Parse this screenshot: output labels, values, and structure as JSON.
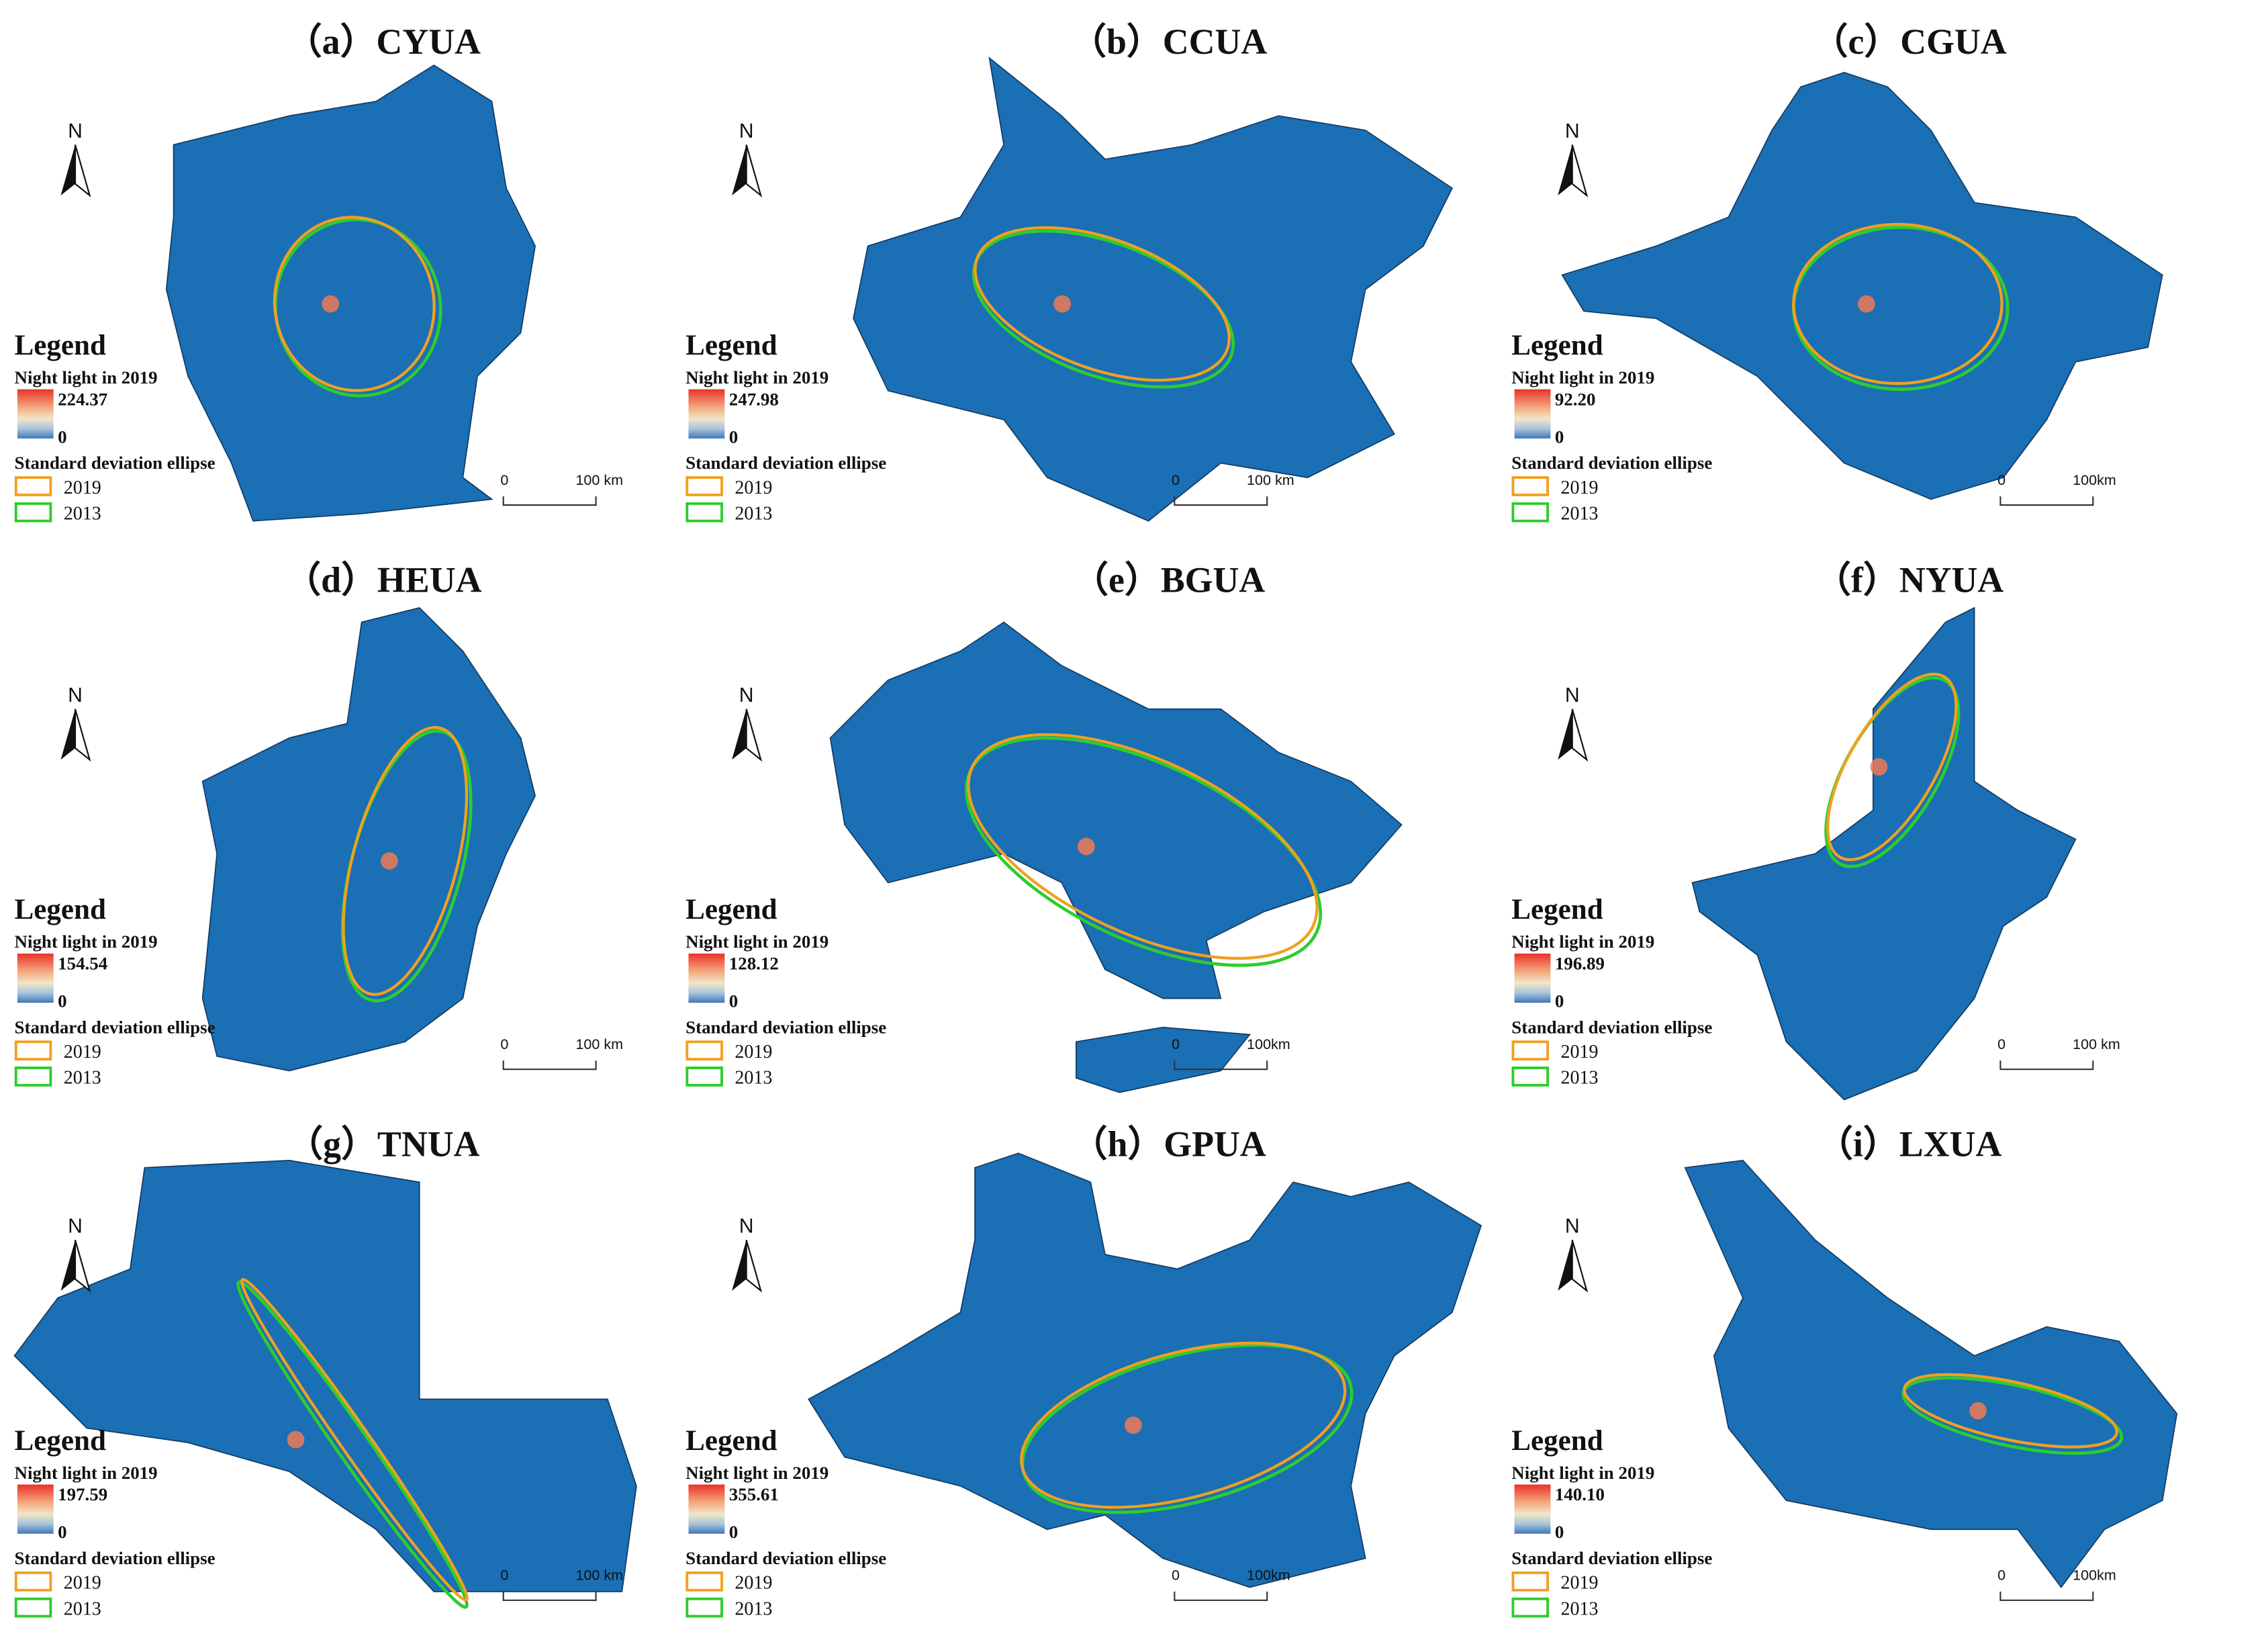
{
  "panels": [
    {
      "title": "（a）CYUA",
      "north": "N",
      "legend_title": "Legend",
      "night_light_label": "Night light in 2019",
      "max": "224.37",
      "min": "0",
      "ellipse_label": "Standard deviation ellipse",
      "years": [
        "2019",
        "2013"
      ],
      "scale": [
        "0",
        "100 km"
      ]
    },
    {
      "title": "（b）CCUA",
      "north": "N",
      "legend_title": "Legend",
      "night_light_label": "Night light in 2019",
      "max": "247.98",
      "min": "0",
      "ellipse_label": "Standard deviation ellipse",
      "years": [
        "2019",
        "2013"
      ],
      "scale": [
        "0",
        "100 km"
      ]
    },
    {
      "title": "（c）CGUA",
      "north": "N",
      "legend_title": "Legend",
      "night_light_label": "Night light in 2019",
      "max": "92.20",
      "min": "0",
      "ellipse_label": "Standard deviation ellipse",
      "years": [
        "2019",
        "2013"
      ],
      "scale": [
        "0",
        "100km"
      ]
    },
    {
      "title": "（d）HEUA",
      "north": "N",
      "legend_title": "Legend",
      "night_light_label": "Night light in 2019",
      "max": "154.54",
      "min": "0",
      "ellipse_label": "Standard deviation ellipse",
      "years": [
        "2019",
        "2013"
      ],
      "scale": [
        "0",
        "100 km"
      ]
    },
    {
      "title": "（e）BGUA",
      "north": "N",
      "legend_title": "Legend",
      "night_light_label": "Night light in 2019",
      "max": "128.12",
      "min": "0",
      "ellipse_label": "Standard deviation ellipse",
      "years": [
        "2019",
        "2013"
      ],
      "scale": [
        "0",
        "100km"
      ]
    },
    {
      "title": "（f）NYUA",
      "north": "N",
      "legend_title": "Legend",
      "night_light_label": "Night light in 2019",
      "max": "196.89",
      "min": "0",
      "ellipse_label": "Standard deviation ellipse",
      "years": [
        "2019",
        "2013"
      ],
      "scale": [
        "0",
        "100 km"
      ]
    },
    {
      "title": "（g）TNUA",
      "north": "N",
      "legend_title": "Legend",
      "night_light_label": "Night light in 2019",
      "max": "197.59",
      "min": "0",
      "ellipse_label": "Standard deviation ellipse",
      "years": [
        "2019",
        "2013"
      ],
      "scale": [
        "0",
        "100 km"
      ]
    },
    {
      "title": "（h）GPUA",
      "north": "N",
      "legend_title": "Legend",
      "night_light_label": "Night light in 2019",
      "max": "355.61",
      "min": "0",
      "ellipse_label": "Standard deviation ellipse",
      "years": [
        "2019",
        "2013"
      ],
      "scale": [
        "0",
        "100km"
      ]
    },
    {
      "title": "（i）LXUA",
      "north": "N",
      "legend_title": "Legend",
      "night_light_label": "Night light in 2019",
      "max": "140.10",
      "min": "0",
      "ellipse_label": "Standard deviation ellipse",
      "years": [
        "2019",
        "2013"
      ],
      "scale": [
        "0",
        "100km"
      ]
    }
  ]
}
